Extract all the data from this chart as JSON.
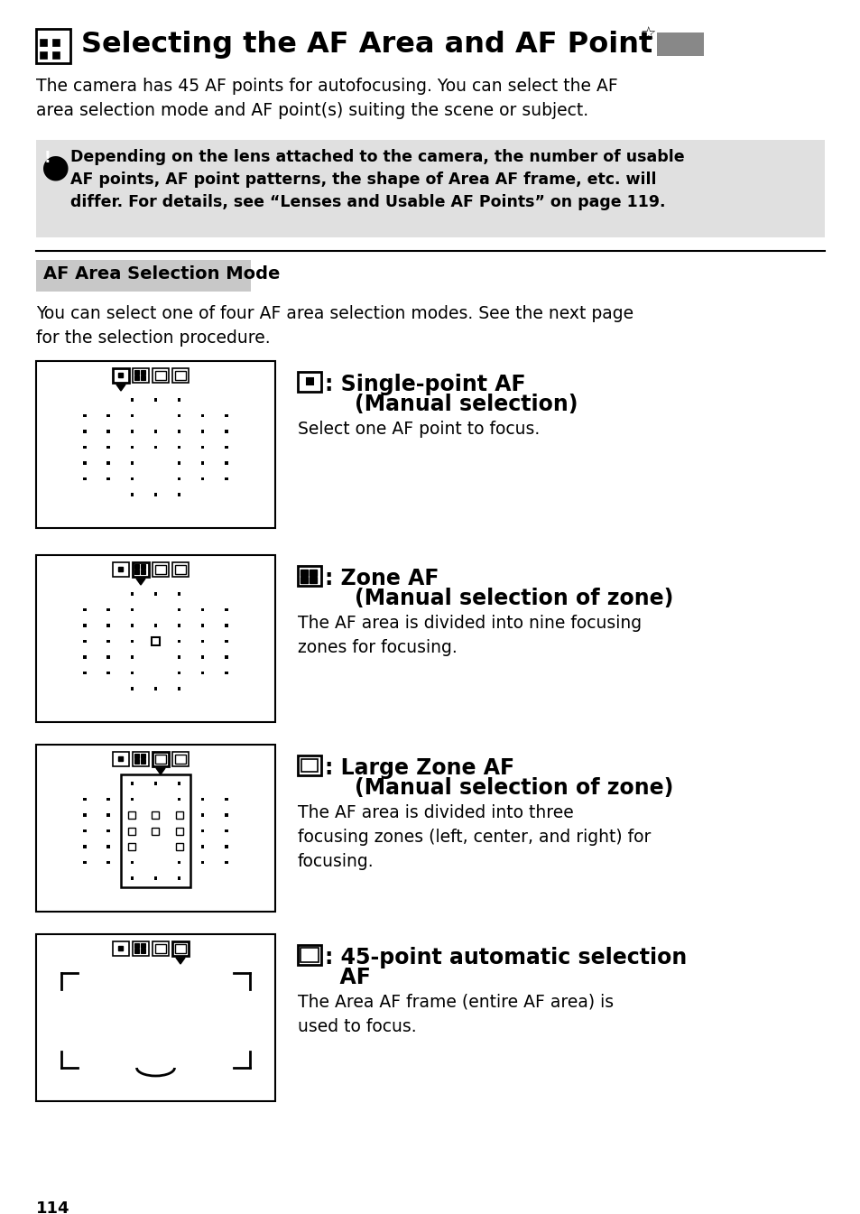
{
  "title": "Selecting the AF Area and AF Point",
  "title_star": "☆",
  "bg_color": "#ffffff",
  "text_color": "#000000",
  "gray_box_color": "#e8e8e8",
  "section_header_bg": "#d0d0d0",
  "page_number": "114",
  "note_text": "Depending on the lens attached to the camera, the number of usable\nAF points, AF point patterns, the shape of Area AF frame, etc. will\ndiffer. For details, see “Lenses and Usable AF Points” on page 119.",
  "body_text1": "The camera has 45 AF points for autofocusing. You can select the AF\narea selection mode and AF point(s) suiting the scene or subject.",
  "section_title": "AF Area Selection Mode",
  "section_body": "You can select one of four AF area selection modes. See the next page\nfor the selection procedure.",
  "mode1_title": ": Single-point AF\n    (Manual selection)",
  "mode1_body": "Select one AF point to focus.",
  "mode2_title": ": Zone AF\n    (Manual selection of zone)",
  "mode2_body": "The AF area is divided into nine focusing\nzones for focusing.",
  "mode3_title": ": Large Zone AF\n    (Manual selection of zone)",
  "mode3_body": "The AF area is divided into three\nfocusing zones (left, center, and right) for\nfocusing.",
  "mode4_title": ": 45-point automatic selection\n  AF",
  "mode4_body": "The Area AF frame (entire AF area) is\nused to focus."
}
